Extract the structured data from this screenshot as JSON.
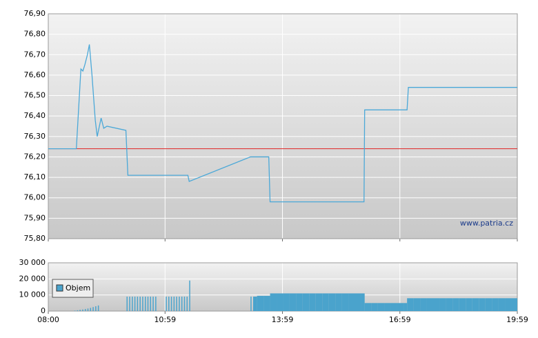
{
  "chart_data": [
    {
      "type": "line",
      "color": "#4aa8d8",
      "x": [
        "08:00",
        "08:43",
        "08:50",
        "08:53",
        "08:56",
        "09:00",
        "09:03",
        "09:07",
        "09:12",
        "09:15",
        "09:21",
        "09:25",
        "09:30",
        "09:59",
        "10:02",
        "11:34",
        "11:36",
        "13:10",
        "13:38",
        "13:40",
        "16:04",
        "16:05",
        "17:10",
        "17:12",
        "19:59"
      ],
      "values": [
        76.24,
        76.24,
        76.63,
        76.62,
        76.65,
        76.7,
        76.75,
        76.6,
        76.38,
        76.3,
        76.39,
        76.34,
        76.35,
        76.33,
        76.11,
        76.11,
        76.08,
        76.2,
        76.2,
        75.98,
        75.98,
        76.43,
        76.43,
        76.54,
        76.54
      ],
      "xlim": [
        "08:00",
        "19:59"
      ],
      "ylim": [
        75.8,
        76.9
      ],
      "yticks": [
        {
          "value": 75.8,
          "label": "75,80"
        },
        {
          "value": 75.9,
          "label": "75,90"
        },
        {
          "value": 76.0,
          "label": "76,00"
        },
        {
          "value": 76.1,
          "label": "76,10"
        },
        {
          "value": 76.2,
          "label": "76,20"
        },
        {
          "value": 76.3,
          "label": "76,30"
        },
        {
          "value": 76.4,
          "label": "76,40"
        },
        {
          "value": 76.5,
          "label": "76,50"
        },
        {
          "value": 76.6,
          "label": "76,60"
        },
        {
          "value": 76.7,
          "label": "76,70"
        },
        {
          "value": 76.8,
          "label": "76,80"
        },
        {
          "value": 76.9,
          "label": "76,90"
        }
      ],
      "reference_line": {
        "value": 76.24,
        "color": "#e02020"
      },
      "annotation": "www.patria.cz",
      "grid": true
    },
    {
      "type": "bar",
      "color": "#4aa3cc",
      "legend": "Objem",
      "x": [
        "08:40",
        "08:44",
        "08:48",
        "08:52",
        "08:56",
        "09:00",
        "09:04",
        "09:08",
        "09:12",
        "09:16",
        "10:00",
        "10:04",
        "10:08",
        "10:12",
        "10:16",
        "10:20",
        "10:24",
        "10:28",
        "10:32",
        "10:36",
        "10:40",
        "10:44",
        "11:00",
        "11:04",
        "11:08",
        "11:12",
        "11:16",
        "11:20",
        "11:24",
        "11:28",
        "11:32",
        "11:36",
        "13:10",
        "13:14",
        "13:20",
        "13:30",
        "13:40",
        "13:50",
        "14:00",
        "14:10",
        "14:20",
        "14:30",
        "14:40",
        "14:50",
        "15:00",
        "15:10",
        "15:20",
        "15:30",
        "15:40",
        "15:50",
        "16:00",
        "16:05",
        "16:15",
        "16:25",
        "16:35",
        "16:45",
        "16:55",
        "17:05",
        "17:10",
        "17:20",
        "17:30",
        "17:40",
        "17:50",
        "18:00",
        "18:10",
        "18:20",
        "18:30",
        "18:40",
        "18:50",
        "19:00",
        "19:10",
        "19:20",
        "19:30",
        "19:40",
        "19:50"
      ],
      "values": [
        300,
        500,
        800,
        1000,
        1300,
        1600,
        2000,
        2500,
        3000,
        3500,
        9000,
        9000,
        9000,
        9000,
        9000,
        9000,
        9000,
        9000,
        9000,
        9000,
        9000,
        9000,
        9000,
        9000,
        9000,
        9000,
        9000,
        9000,
        9000,
        9000,
        9000,
        19000,
        9000,
        9000,
        9500,
        9500,
        11000,
        11000,
        11000,
        11000,
        11000,
        11000,
        11000,
        11000,
        11000,
        11000,
        11000,
        11000,
        11000,
        11000,
        11000,
        5000,
        5000,
        5000,
        5000,
        5000,
        5000,
        5000,
        8000,
        8000,
        8000,
        8000,
        8000,
        8000,
        8000,
        8000,
        8000,
        8000,
        8000,
        8000,
        8000,
        8000,
        8000,
        8000,
        8000
      ],
      "xlim": [
        "08:00",
        "19:59"
      ],
      "xticks": [
        "08:00",
        "10:59",
        "13:59",
        "16:59",
        "19:59"
      ],
      "ylim": [
        0,
        30000
      ],
      "yticks": [
        {
          "value": 0,
          "label": "0"
        },
        {
          "value": 10000,
          "label": "10 000"
        },
        {
          "value": 20000,
          "label": "20 000"
        },
        {
          "value": 30000,
          "label": "30 000"
        }
      ],
      "grid": true
    }
  ]
}
